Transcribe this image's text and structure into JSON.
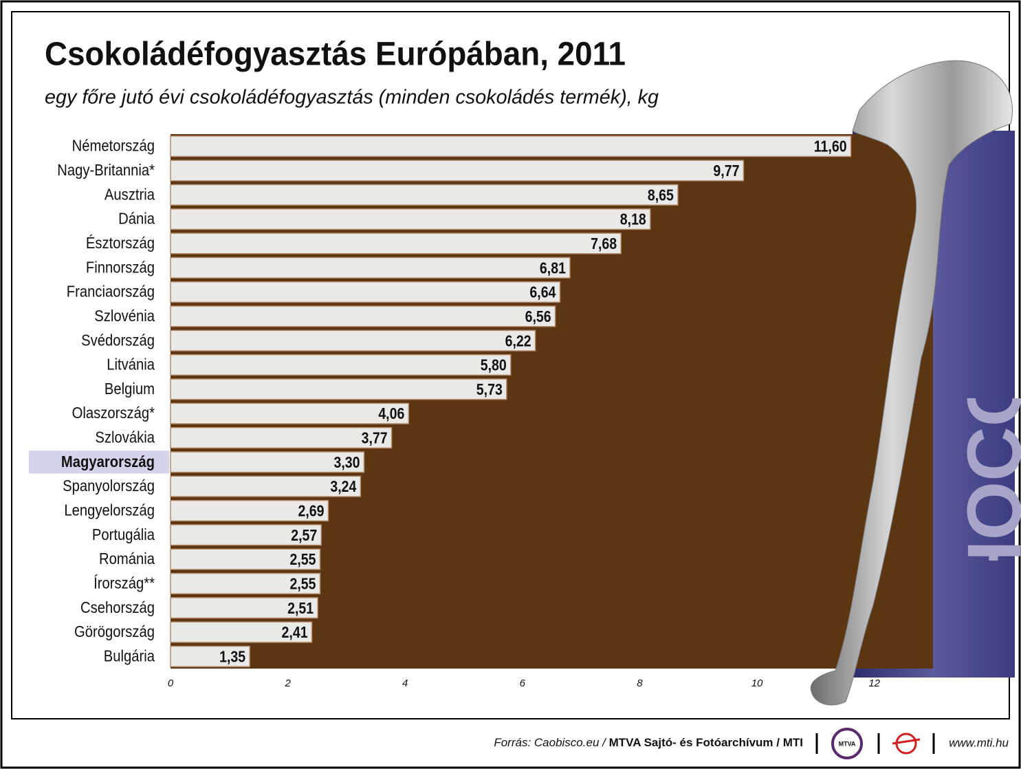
{
  "chart_data": {
    "type": "bar",
    "orientation": "horizontal",
    "title": "Csokoládéfogyasztás Európában, 2011",
    "subtitle": "egy főre jutó évi csokoládéfogyasztás (minden csokoládés termék), kg",
    "categories": [
      "Németország",
      "Nagy-Britannia*",
      "Ausztria",
      "Dánia",
      "Észtország",
      "Finnország",
      "Franciaország",
      "Szlovénia",
      "Svédország",
      "Litvánia",
      "Belgium",
      "Olaszország*",
      "Szlovákia",
      "Magyarország",
      "Spanyolország",
      "Lengyelország",
      "Portugália",
      "Románia",
      "Írország**",
      "Csehország",
      "Görögország",
      "Bulgária"
    ],
    "values": [
      11.6,
      9.77,
      8.65,
      8.18,
      7.68,
      6.81,
      6.64,
      6.56,
      6.22,
      5.8,
      5.73,
      4.06,
      3.77,
      3.3,
      3.24,
      2.69,
      2.57,
      2.55,
      2.55,
      2.51,
      2.41,
      1.35
    ],
    "value_labels": [
      "11,60",
      "9,77",
      "8,65",
      "8,18",
      "7,68",
      "6,81",
      "6,64",
      "6,56",
      "6,22",
      "5,80",
      "5,73",
      "4,06",
      "3,77",
      "3,30",
      "3,24",
      "2,69",
      "2,57",
      "2,55",
      "2,55",
      "2,51",
      "2,41",
      "1,35"
    ],
    "color": "#e9e9e7",
    "background_color": "#5c3512",
    "highlight": 13,
    "highlight_color": "#d6d4ec",
    "xlim": [
      0,
      13
    ],
    "xticks": [
      0,
      2,
      4,
      6,
      8,
      10,
      12
    ],
    "grid": false,
    "decoration": "CHOCOLATE"
  },
  "footer": {
    "source": "Forrás: Caobisco.eu / ",
    "agency": "MTVA Sajtó- és Fotóarchívum / MTI",
    "logo": "MTVA",
    "url": "www.mti.hu"
  }
}
